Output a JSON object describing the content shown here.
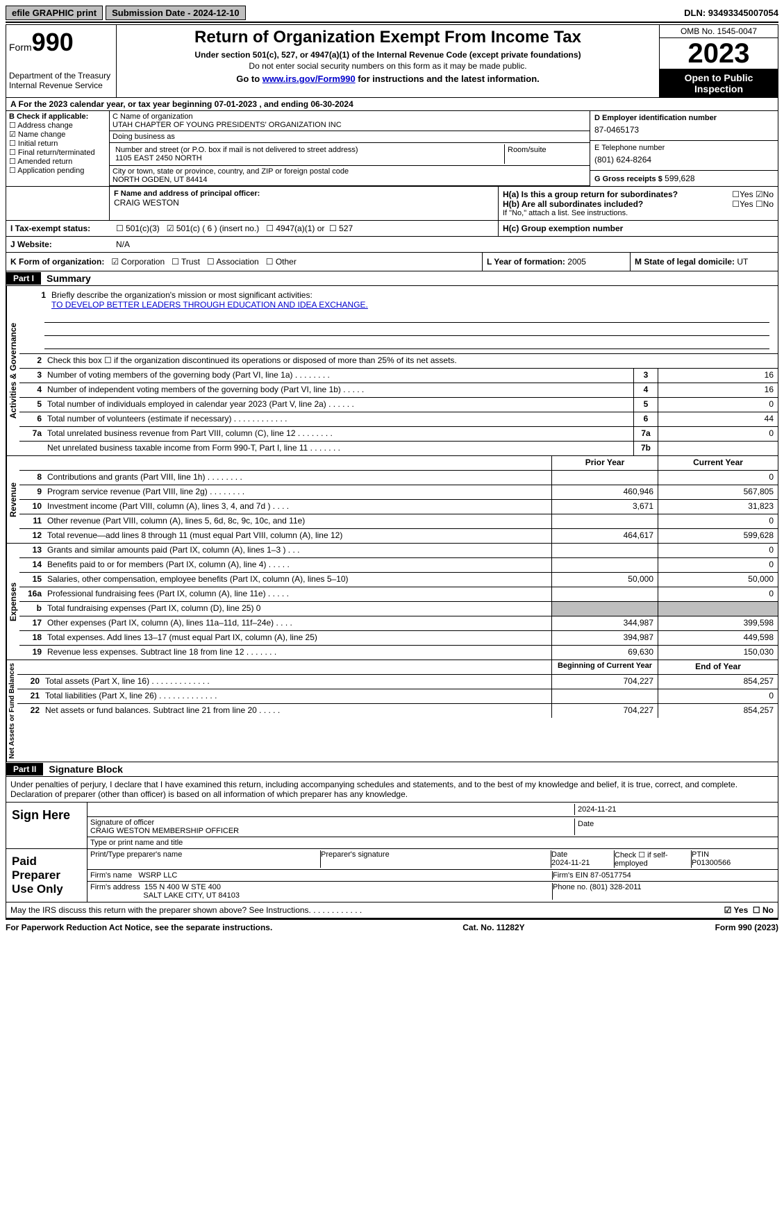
{
  "topbar": {
    "efile": "efile GRAPHIC print",
    "submission": "Submission Date - 2024-12-10",
    "dln": "DLN: 93493345007054"
  },
  "header": {
    "form_prefix": "Form",
    "form_num": "990",
    "title": "Return of Organization Exempt From Income Tax",
    "sub1": "Under section 501(c), 527, or 4947(a)(1) of the Internal Revenue Code (except private foundations)",
    "sub2": "Do not enter social security numbers on this form as it may be made public.",
    "sub3_pre": "Go to ",
    "sub3_link": "www.irs.gov/Form990",
    "sub3_post": " for instructions and the latest information.",
    "dept": "Department of the Treasury\nInternal Revenue Service",
    "omb": "OMB No. 1545-0047",
    "year": "2023",
    "open": "Open to Public Inspection"
  },
  "calendar": "A For the 2023 calendar year, or tax year beginning 07-01-2023   , and ending 06-30-2024",
  "sectionB": {
    "label": "B Check if applicable:",
    "items": [
      {
        "label": "Address change",
        "checked": false
      },
      {
        "label": "Name change",
        "checked": true
      },
      {
        "label": "Initial return",
        "checked": false
      },
      {
        "label": "Final return/terminated",
        "checked": false
      },
      {
        "label": "Amended return",
        "checked": false
      },
      {
        "label": "Application pending",
        "checked": false
      }
    ]
  },
  "sectionC": {
    "name_label": "C Name of organization",
    "name": "UTAH CHAPTER OF YOUNG PRESIDENTS' ORGANIZATION INC",
    "dba_label": "Doing business as",
    "dba": "",
    "street_label": "Number and street (or P.O. box if mail is not delivered to street address)",
    "room_label": "Room/suite",
    "street": "1105 EAST 2450 NORTH",
    "city_label": "City or town, state or province, country, and ZIP or foreign postal code",
    "city": "NORTH OGDEN, UT  84414",
    "officer_label": "F Name and address of principal officer:",
    "officer": "CRAIG WESTON"
  },
  "sectionD": {
    "ein_label": "D Employer identification number",
    "ein": "87-0465173",
    "tel_label": "E Telephone number",
    "tel": "(801) 624-8264",
    "gross_label": "G Gross receipts $",
    "gross": "599,628"
  },
  "sectionH": {
    "h_a": "H(a)  Is this a group return for subordinates?",
    "h_a_yes": false,
    "h_a_no": true,
    "h_b": "H(b)  Are all subordinates included?",
    "h_b_note": "If \"No,\" attach a list. See instructions.",
    "h_c": "H(c)  Group exemption number"
  },
  "sectionI": {
    "label": "I    Tax-exempt status:",
    "c3": false,
    "c_other": true,
    "c_other_text": "501(c) ( 6 ) (insert no.)",
    "a4947": false,
    "a4947_text": "4947(a)(1) or",
    "s527": false,
    "s527_text": "527"
  },
  "sectionJ": {
    "label": "J    Website:",
    "value": "N/A"
  },
  "sectionK": {
    "label": "K Form of organization:",
    "corp": true,
    "corp_text": "Corporation",
    "trust": false,
    "trust_text": "Trust",
    "assoc": false,
    "assoc_text": "Association",
    "other": false,
    "other_text": "Other"
  },
  "sectionL": {
    "label": "L Year of formation:",
    "value": "2005"
  },
  "sectionM": {
    "label": "M State of legal domicile:",
    "value": "UT"
  },
  "part1": {
    "header": "Part I",
    "title": "Summary",
    "q1_label": "Briefly describe the organization's mission or most significant activities:",
    "q1_value": "TO DEVELOP BETTER LEADERS THROUGH EDUCATION AND IDEA EXCHANGE.",
    "q2": "Check this box ☐ if the organization discontinued its operations or disposed of more than 25% of its net assets.",
    "vert_activities": "Activities & Governance",
    "vert_revenue": "Revenue",
    "vert_expenses": "Expenses",
    "vert_net": "Net Assets or Fund Balances"
  },
  "lines_gov": [
    {
      "num": "3",
      "text": "Number of voting members of the governing body (Part VI, line 1a)   .    .    .    .    .    .    .    .",
      "box": "3",
      "val": "16"
    },
    {
      "num": "4",
      "text": "Number of independent voting members of the governing body (Part VI, line 1b)   .    .    .    .    .",
      "box": "4",
      "val": "16"
    },
    {
      "num": "5",
      "text": "Total number of individuals employed in calendar year 2023 (Part V, line 2a)   .    .    .    .    .    .",
      "box": "5",
      "val": "0"
    },
    {
      "num": "6",
      "text": "Total number of volunteers (estimate if necessary)   .    .    .    .    .    .    .    .    .    .    .    .",
      "box": "6",
      "val": "44"
    },
    {
      "num": "7a",
      "text": "Total unrelated business revenue from Part VIII, column (C), line 12   .    .    .    .    .    .    .    .",
      "box": "7a",
      "val": "0"
    },
    {
      "num": "",
      "text": "Net unrelated business taxable income from Form 990-T, Part I, line 11   .    .    .    .    .    .    .",
      "box": "7b",
      "val": ""
    }
  ],
  "two_col_header": {
    "prior": "Prior Year",
    "current": "Current Year"
  },
  "lines_rev": [
    {
      "num": "8",
      "text": "Contributions and grants (Part VIII, line 1h)   .    .    .    .    .    .    .    .",
      "prior": "",
      "curr": "0"
    },
    {
      "num": "9",
      "text": "Program service revenue (Part VIII, line 2g)   .    .    .    .    .    .    .    .",
      "prior": "460,946",
      "curr": "567,805"
    },
    {
      "num": "10",
      "text": "Investment income (Part VIII, column (A), lines 3, 4, and 7d )   .    .    .    .",
      "prior": "3,671",
      "curr": "31,823"
    },
    {
      "num": "11",
      "text": "Other revenue (Part VIII, column (A), lines 5, 6d, 8c, 9c, 10c, and 11e)",
      "prior": "",
      "curr": "0"
    },
    {
      "num": "12",
      "text": "Total revenue—add lines 8 through 11 (must equal Part VIII, column (A), line 12)",
      "prior": "464,617",
      "curr": "599,628"
    }
  ],
  "lines_exp": [
    {
      "num": "13",
      "text": "Grants and similar amounts paid (Part IX, column (A), lines 1–3 )   .    .    .",
      "prior": "",
      "curr": "0"
    },
    {
      "num": "14",
      "text": "Benefits paid to or for members (Part IX, column (A), line 4)   .    .    .    .    .",
      "prior": "",
      "curr": "0"
    },
    {
      "num": "15",
      "text": "Salaries, other compensation, employee benefits (Part IX, column (A), lines 5–10)",
      "prior": "50,000",
      "curr": "50,000"
    },
    {
      "num": "16a",
      "text": "Professional fundraising fees (Part IX, column (A), line 11e)   .    .    .    .    .",
      "prior": "",
      "curr": "0"
    },
    {
      "num": "b",
      "text": "Total fundraising expenses (Part IX, column (D), line 25) 0",
      "prior": "SHADE",
      "curr": "SHADE"
    },
    {
      "num": "17",
      "text": "Other expenses (Part IX, column (A), lines 11a–11d, 11f–24e)   .    .    .    .",
      "prior": "344,987",
      "curr": "399,598"
    },
    {
      "num": "18",
      "text": "Total expenses. Add lines 13–17 (must equal Part IX, column (A), line 25)",
      "prior": "394,987",
      "curr": "449,598"
    },
    {
      "num": "19",
      "text": "Revenue less expenses. Subtract line 18 from line 12   .    .    .    .    .    .    .",
      "prior": "69,630",
      "curr": "150,030"
    }
  ],
  "net_header": {
    "begin": "Beginning of Current Year",
    "end": "End of Year"
  },
  "lines_net": [
    {
      "num": "20",
      "text": "Total assets (Part X, line 16)   .    .    .    .    .    .    .    .    .    .    .    .    .",
      "prior": "704,227",
      "curr": "854,257"
    },
    {
      "num": "21",
      "text": "Total liabilities (Part X, line 26)   .    .    .    .    .    .    .    .    .    .    .    .    .",
      "prior": "",
      "curr": "0"
    },
    {
      "num": "22",
      "text": "Net assets or fund balances. Subtract line 21 from line 20   .    .    .    .    .",
      "prior": "704,227",
      "curr": "854,257"
    }
  ],
  "part2": {
    "header": "Part II",
    "title": "Signature Block",
    "decl": "Under penalties of perjury, I declare that I have examined this return, including accompanying schedules and statements, and to the best of my knowledge and belief, it is true, correct, and complete. Declaration of preparer (other than officer) is based on all information of which preparer has any knowledge."
  },
  "sign": {
    "label": "Sign Here",
    "date": "2024-11-21",
    "sig_label": "Signature of officer",
    "name_line": "CRAIG WESTON  MEMBERSHIP OFFICER",
    "type_label": "Type or print name and title",
    "date_label": "Date"
  },
  "preparer": {
    "label": "Paid Preparer Use Only",
    "print_label": "Print/Type preparer's name",
    "sig_label": "Preparer's signature",
    "date_label": "Date",
    "date": "2024-11-21",
    "check_label": "Check ☐ if self-employed",
    "ptin_label": "PTIN",
    "ptin": "P01300566",
    "firm_name_label": "Firm's name",
    "firm_name": "WSRP LLC",
    "firm_ein_label": "Firm's EIN",
    "firm_ein": "87-0517754",
    "firm_addr_label": "Firm's address",
    "firm_addr1": "155 N 400 W STE 400",
    "firm_addr2": "SALT LAKE CITY, UT  84103",
    "phone_label": "Phone no.",
    "phone": "(801) 328-2011"
  },
  "discuss": {
    "text": "May the IRS discuss this return with the preparer shown above? See Instructions.    .    .    .    .    .    .    .    .    .    .    .",
    "yes": true,
    "no": false
  },
  "footer": {
    "left": "For Paperwork Reduction Act Notice, see the separate instructions.",
    "mid": "Cat. No. 11282Y",
    "right": "Form 990 (2023)"
  }
}
